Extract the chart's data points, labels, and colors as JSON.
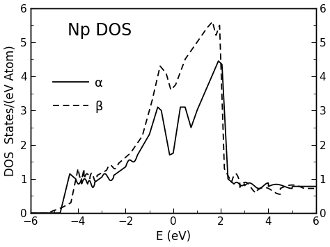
{
  "title": "Np DOS",
  "xlabel": "E (eV)",
  "ylabel": "DOS  States/(eV Atom)",
  "xlim": [
    -6,
    6
  ],
  "ylim": [
    0,
    6
  ],
  "alpha_label": "α",
  "beta_label": "β",
  "title_fontsize": 17,
  "label_fontsize": 12,
  "tick_fontsize": 11,
  "background_color": "#ffffff",
  "line_color": "#000000"
}
